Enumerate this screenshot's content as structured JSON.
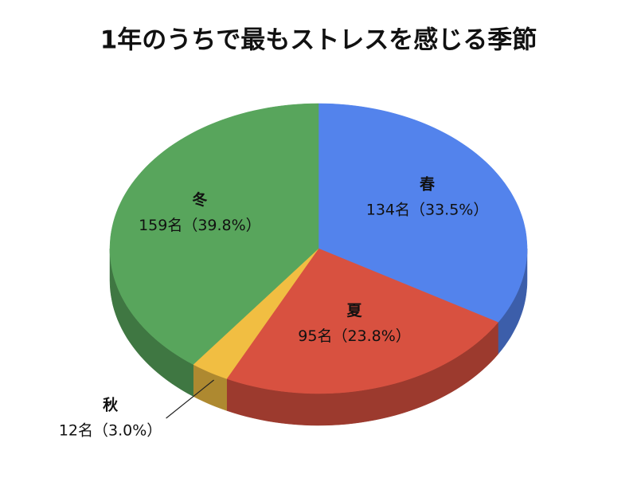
{
  "chart_data": {
    "type": "pie",
    "title": "1年のうちで最もストレスを感じる季節",
    "categories": [
      "春",
      "夏",
      "秋",
      "冬"
    ],
    "values": [
      134,
      95,
      12,
      159
    ],
    "value_labels": [
      "134名（33.5%）",
      "95名（23.8%）",
      "12名（3.0%）",
      "159名（39.8%）"
    ],
    "colors": [
      "#5383ec",
      "#d85140",
      "#f1be42",
      "#58a55c"
    ]
  }
}
